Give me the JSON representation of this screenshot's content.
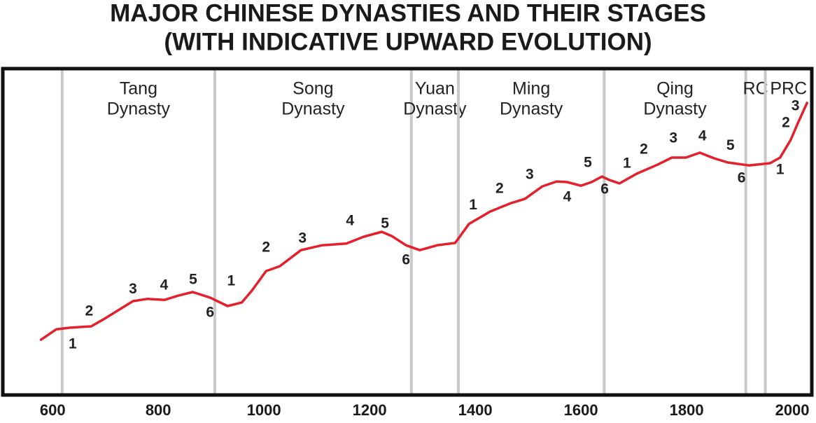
{
  "chart_data": {
    "type": "line",
    "title": "MAJOR CHINESE DYNASTIES AND THEIR STAGES",
    "subtitle": "(WITH INDICATIVE UPWARD EVOLUTION)",
    "color": "#e3202b",
    "x": [
      578,
      607,
      633,
      673,
      699,
      752,
      779,
      812,
      838,
      865,
      898,
      931,
      958,
      977,
      1004,
      1030,
      1070,
      1110,
      1156,
      1189,
      1223,
      1242,
      1269,
      1295,
      1328,
      1362,
      1388,
      1428,
      1468,
      1494,
      1527,
      1554,
      1574,
      1600,
      1620,
      1640,
      1653,
      1673,
      1706,
      1746,
      1772,
      1799,
      1825,
      1852,
      1878,
      1918,
      1958,
      1977,
      1997,
      2011,
      2028
    ],
    "values": [
      17.1,
      20.3,
      20.8,
      21.2,
      23.6,
      28.9,
      29.6,
      29.3,
      30.6,
      31.7,
      30.0,
      27.4,
      28.5,
      32.1,
      38.1,
      39.6,
      44.5,
      46.0,
      46.5,
      48.6,
      50.1,
      48.8,
      46.0,
      44.5,
      46.0,
      46.7,
      52.5,
      56.3,
      58.9,
      60.2,
      64.0,
      65.5,
      65.3,
      64.2,
      65.3,
      67.0,
      66.0,
      64.9,
      67.9,
      70.7,
      72.8,
      72.8,
      74.3,
      72.6,
      71.3,
      70.4,
      71.1,
      72.8,
      78.2,
      83.5,
      89.5
    ],
    "xlim": [
      507,
      2037
    ],
    "ylim": [
      0,
      100
    ],
    "xticks": [
      600,
      800,
      1000,
      1200,
      1400,
      1600,
      1800,
      2000
    ],
    "periods": [
      {
        "label": [
          "Tang",
          "Dynasty"
        ],
        "start": 618
      },
      {
        "label": [
          "Song",
          "Dynasty"
        ],
        "start": 907
      },
      {
        "label": [
          "Yuan",
          "Dynasty"
        ],
        "start": 1279
      },
      {
        "label": [
          "Ming",
          "Dynasty"
        ],
        "start": 1368
      },
      {
        "label": [
          "Qing",
          "Dynasty"
        ],
        "start": 1644
      },
      {
        "label": [
          "RC"
        ],
        "start": 1912
      },
      {
        "label": [
          "PRC"
        ],
        "start": 1949
      }
    ],
    "annotations": [
      {
        "text": "1",
        "x": 638,
        "y": 15.6
      },
      {
        "text": "2",
        "x": 669,
        "y": 25.7
      },
      {
        "text": "3",
        "x": 752,
        "y": 32.5
      },
      {
        "text": "4",
        "x": 811,
        "y": 33.6
      },
      {
        "text": "5",
        "x": 866,
        "y": 35.3
      },
      {
        "text": "6",
        "x": 898,
        "y": 25.3
      },
      {
        "text": "1",
        "x": 938,
        "y": 34.9
      },
      {
        "text": "2",
        "x": 1004,
        "y": 45.2
      },
      {
        "text": "3",
        "x": 1073,
        "y": 48.0
      },
      {
        "text": "4",
        "x": 1163,
        "y": 53.3
      },
      {
        "text": "5",
        "x": 1229,
        "y": 52.5
      },
      {
        "text": "6",
        "x": 1269,
        "y": 41.3
      },
      {
        "text": "1",
        "x": 1396,
        "y": 58.2
      },
      {
        "text": "2",
        "x": 1446,
        "y": 63.2
      },
      {
        "text": "3",
        "x": 1503,
        "y": 67.5
      },
      {
        "text": "4",
        "x": 1574,
        "y": 60.6
      },
      {
        "text": "5",
        "x": 1613,
        "y": 71.1
      },
      {
        "text": "6",
        "x": 1645,
        "y": 63.0
      },
      {
        "text": "1",
        "x": 1687,
        "y": 70.9
      },
      {
        "text": "2",
        "x": 1719,
        "y": 75.2
      },
      {
        "text": "3",
        "x": 1775,
        "y": 78.6
      },
      {
        "text": "4",
        "x": 1830,
        "y": 79.2
      },
      {
        "text": "5",
        "x": 1883,
        "y": 76.4
      },
      {
        "text": "6",
        "x": 1904,
        "y": 66.4
      },
      {
        "text": "1",
        "x": 1977,
        "y": 69.0
      },
      {
        "text": "2",
        "x": 1988,
        "y": 83.3
      },
      {
        "text": "3",
        "x": 2006,
        "y": 88.4
      }
    ]
  }
}
